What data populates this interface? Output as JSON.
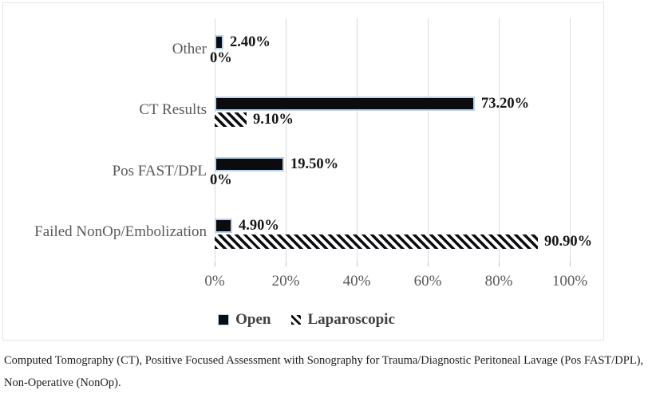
{
  "chart_data": {
    "type": "bar",
    "orientation": "horizontal",
    "title": "",
    "xlabel": "",
    "ylabel": "",
    "categories": [
      "Other",
      "CT Results",
      "Pos FAST/DPL",
      "Failed NonOp/Embolization"
    ],
    "series": [
      {
        "name": "Open",
        "style": "solid",
        "values": [
          2.4,
          73.2,
          19.5,
          4.9
        ],
        "labels": [
          "2.40%",
          "73.20%",
          "19.50%",
          "4.90%"
        ]
      },
      {
        "name": "Laparoscopic",
        "style": "hatched",
        "values": [
          0,
          9.1,
          0,
          90.9
        ],
        "labels": [
          "0%",
          "9.10%",
          "0%",
          "90.90%"
        ]
      }
    ],
    "x_axis": {
      "min": 0,
      "max": 100,
      "tick_labels": [
        "0%",
        "20%",
        "40%",
        "60%",
        "80%",
        "100%"
      ]
    },
    "grid": true,
    "legend_position": "bottom"
  },
  "colors": {
    "bar_fill": "#0b0b10",
    "bar_border": "#b9d4ea",
    "gridline": "#d9d9d9",
    "axis_text": "#595959",
    "data_label": "#161616",
    "legend_text": "#3f3f3f",
    "frame_border": "#e3e7e7"
  },
  "caption": "Computed Tomography (CT), Positive Focused Assessment with Sonography for Trauma/Diagnostic Peritoneal Lavage (Pos FAST/DPL), Non-Operative (NonOp)."
}
